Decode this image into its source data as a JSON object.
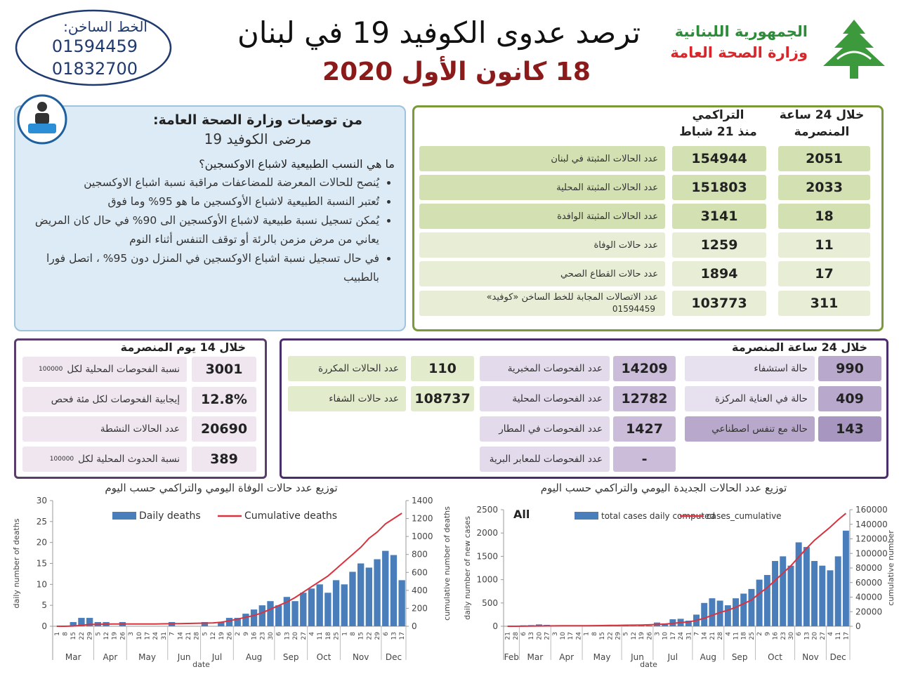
{
  "header": {
    "hotline_label": "الخط الساخن:",
    "hotline_numbers": [
      "01594459",
      "01832700"
    ],
    "title": "ترصد عدوى الكوفيد 19 في لبنان",
    "date": "18 كانون الأول 2020",
    "ministry": [
      "الجمهورية اللبنانية",
      "وزارة الصحة العامة"
    ]
  },
  "recommendations": {
    "title": "من توصيات وزارة الصحة العامة:",
    "subtitle": "مرضى الكوفيد 19",
    "question": "ما هي النسب الطبيعية لاشباع الاوكسجين؟",
    "bullets": [
      "يُنصح للحالات المعرضة للمضاعفات مراقبة نسبة اشباع الاوكسجين",
      "تُعتبر النسبة الطبيعية لاشباع الأوكسجين ما هو 95% وما فوق",
      "يُمكن تسجيل نسبة طبيعية لاشباع الأوكسجين الى 90% في حال كان المريض يعاني من مرض مزمن بالرئة أو توقف التنفس أثناء النوم",
      "في حال تسجيل نسبة اشباع الاوكسجين في المنزل دون 95% ، اتصل فورا بالطبيب"
    ]
  },
  "summary": {
    "daily_header": [
      "خلال 24 ساعة",
      "المنصرمة"
    ],
    "cumulative_header": [
      "التراكمي",
      "منذ 21 شباط"
    ],
    "rows": [
      {
        "label": "عدد الحالات المثبتة في لبنان",
        "cumulative": 154944,
        "daily": 2051
      },
      {
        "label": "عدد الحالات المثبتة المحلية",
        "cumulative": 151803,
        "daily": 2033
      },
      {
        "label": "عدد الحالات المثبتة الوافدة",
        "cumulative": 3141,
        "daily": 18
      },
      {
        "label": "عدد حالات الوفاة",
        "cumulative": 1259,
        "daily": 11
      },
      {
        "label": "عدد حالات القطاع الصحي",
        "cumulative": 1894,
        "daily": 17
      },
      {
        "label": "عدد الاتصالات المجابة للخط الساخن «كوفيد»",
        "note": "01594459",
        "cumulative": 103773,
        "daily": 311
      }
    ]
  },
  "fourteen_days": {
    "title": "خلال 14 يوم المنصرمة",
    "rows": [
      {
        "value": 3001,
        "label": "نسبة الفحوصات المحلية لكل",
        "label_small": "100000"
      },
      {
        "value": "12.8%",
        "label": "إيجابية الفحوصات لكل مئة فحص"
      },
      {
        "value": 20690,
        "label": "عدد الحالات النشطة"
      },
      {
        "value": 389,
        "label": "نسبة الحدوث المحلية لكل",
        "label_small": "100000"
      }
    ]
  },
  "last24": {
    "title": "خلال 24 ساعة المنصرمة",
    "hospital": [
      {
        "value": 990,
        "label": "حالة استشفاء"
      },
      {
        "value": 409,
        "label": "حالة في العناية المركزة"
      },
      {
        "value": 143,
        "label": "حالة مع تنفس اصطناعي"
      }
    ],
    "tests": [
      {
        "value": 14209,
        "label": "عدد الفحوصات المخبرية"
      },
      {
        "value": 12782,
        "label": "عدد الفحوصات المحلية"
      },
      {
        "value": 1427,
        "label": "عدد الفحوصات في المطار"
      },
      {
        "value": "-",
        "label": "عدد الفحوصات للمعابر البرية"
      }
    ],
    "other": [
      {
        "value": 110,
        "label": "عدد الحالات المكررة"
      },
      {
        "value": 108737,
        "label": "عدد حالات الشفاء"
      }
    ]
  },
  "chart_data": [
    {
      "type": "bar_line",
      "title": "توزيع عدد حالات الوفاة اليومي والتراكمي حسب اليوم",
      "y_label": "daily number of deaths",
      "y2_label": "cumulative number of deaths",
      "x_label": "date",
      "months": [
        "Mar",
        "Apr",
        "May",
        "Jun",
        "Jul",
        "Aug",
        "Sep",
        "Oct",
        "Nov",
        "Dec"
      ],
      "categories": [
        1,
        8,
        15,
        22,
        29,
        5,
        12,
        19,
        26,
        3,
        10,
        17,
        24,
        31,
        7,
        14,
        21,
        28,
        5,
        12,
        19,
        26,
        2,
        9,
        16,
        23,
        30,
        6,
        13,
        20,
        27,
        4,
        11,
        18,
        25,
        1,
        8,
        15,
        22,
        29,
        6,
        13,
        17
      ],
      "ylim": [
        0,
        30
      ],
      "yticks": [
        0,
        5,
        10,
        15,
        20,
        25,
        30
      ],
      "y2lim": [
        0,
        1400
      ],
      "y2ticks": [
        0,
        200,
        400,
        600,
        800,
        1000,
        1200,
        1400
      ],
      "series": [
        {
          "name": "Daily deaths",
          "color": "#4a7ebb",
          "values": [
            0,
            0,
            1,
            2,
            2,
            1,
            1,
            0,
            1,
            0,
            0,
            0,
            0,
            0,
            1,
            0,
            0,
            0,
            1,
            0,
            1,
            2,
            2,
            3,
            4,
            5,
            6,
            5,
            7,
            6,
            8,
            9,
            10,
            8,
            11,
            10,
            13,
            15,
            14,
            16,
            18,
            17,
            11
          ]
        },
        {
          "name": "Cumulative deaths",
          "color": "#d9333f",
          "axis": "y2",
          "values": [
            0,
            0,
            3,
            10,
            20,
            22,
            24,
            26,
            26,
            26,
            26,
            26,
            26,
            27,
            28,
            30,
            31,
            33,
            35,
            37,
            45,
            60,
            80,
            100,
            120,
            150,
            190,
            230,
            270,
            320,
            380,
            440,
            500,
            560,
            640,
            720,
            800,
            880,
            980,
            1050,
            1140,
            1200,
            1259
          ]
        }
      ]
    },
    {
      "type": "bar_line",
      "title": "توزيع عدد الحالات الجديدة اليومي والتراكمي حسب اليوم",
      "annotation": "All",
      "y_label": "daily number of new cases",
      "y2_label": "cumulative number",
      "x_label": "date",
      "months": [
        "Feb",
        "Mar",
        "Apr",
        "May",
        "Jun",
        "Jul",
        "Aug",
        "Sep",
        "Oct",
        "Nov",
        "Dec"
      ],
      "categories": [
        21,
        28,
        6,
        13,
        20,
        27,
        3,
        10,
        17,
        24,
        1,
        8,
        15,
        22,
        29,
        5,
        12,
        19,
        26,
        3,
        10,
        17,
        24,
        31,
        7,
        14,
        21,
        28,
        4,
        11,
        18,
        25,
        2,
        9,
        16,
        23,
        30,
        6,
        13,
        20,
        27,
        4,
        11,
        17
      ],
      "ylim": [
        0,
        2500
      ],
      "yticks": [
        0,
        500,
        1000,
        1500,
        2000,
        2500
      ],
      "y2lim": [
        0,
        160000
      ],
      "y2ticks": [
        0,
        20000,
        40000,
        60000,
        80000,
        100000,
        120000,
        140000,
        160000
      ],
      "series": [
        {
          "name": "total cases daily computed",
          "color": "#4a7ebb",
          "values": [
            1,
            5,
            20,
            25,
            40,
            30,
            10,
            15,
            5,
            8,
            10,
            20,
            15,
            30,
            20,
            15,
            10,
            25,
            15,
            80,
            60,
            150,
            160,
            120,
            250,
            500,
            600,
            550,
            450,
            600,
            700,
            800,
            1000,
            1100,
            1400,
            1500,
            1300,
            1800,
            1700,
            1400,
            1300,
            1200,
            1500,
            2051
          ]
        },
        {
          "name": "cases_cumulative",
          "color": "#d9333f",
          "axis": "y2",
          "values": [
            1,
            10,
            80,
            250,
            400,
            450,
            600,
            680,
            700,
            730,
            800,
            900,
            1000,
            1200,
            1300,
            1400,
            1500,
            1700,
            2000,
            2500,
            3000,
            4000,
            5000,
            6000,
            8000,
            11000,
            15000,
            19000,
            22000,
            26000,
            31000,
            36000,
            45000,
            53000,
            63000,
            73000,
            83000,
            95000,
            107000,
            118000,
            127000,
            136000,
            146000,
            154944
          ]
        }
      ]
    }
  ]
}
